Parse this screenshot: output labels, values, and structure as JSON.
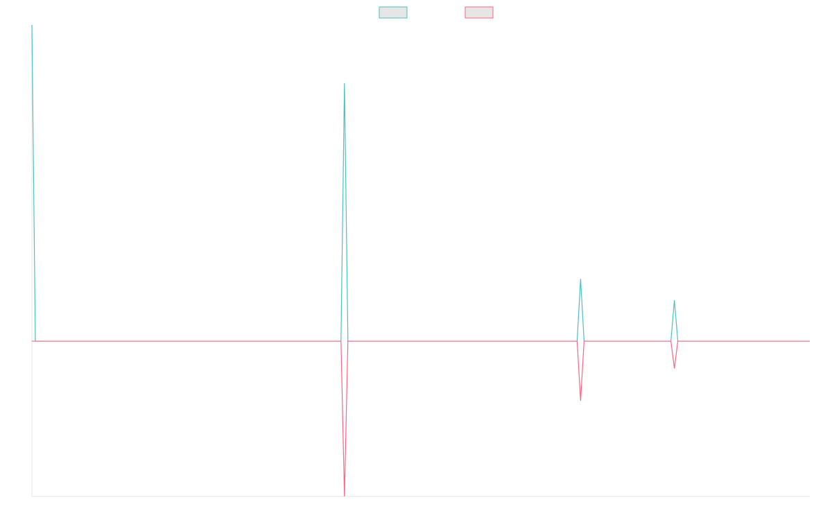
{
  "chart_data": {
    "type": "line",
    "x": [
      0,
      1,
      89,
      90,
      91,
      157,
      158,
      159,
      184,
      185,
      186,
      224
    ],
    "xlim": [
      0,
      224
    ],
    "ylim": [
      -0.491,
      1.0
    ],
    "series": [
      {
        "color": "#4bc0c0",
        "values": [
          1.0,
          0,
          0,
          0.816,
          0,
          0,
          0.197,
          0,
          0,
          0.129,
          0,
          0
        ]
      },
      {
        "color": "#ff6384",
        "values": [
          0,
          0,
          0,
          -0.491,
          0,
          0,
          -0.189,
          0,
          0,
          -0.086,
          0,
          0
        ]
      }
    ],
    "grid": false,
    "legend": "top"
  }
}
